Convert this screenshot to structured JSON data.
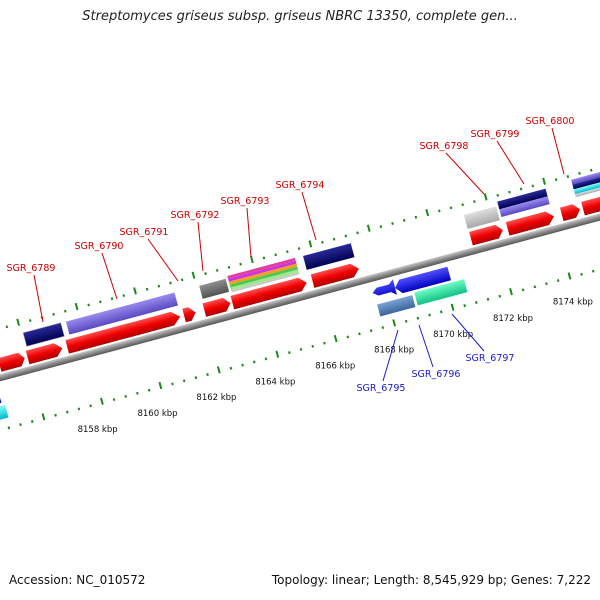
{
  "title": "Streptomyces griseus subsp. griseus NBRC 13350, complete gen...",
  "footer": {
    "accession": "Accession: NC_010572",
    "summary": "Topology: linear; Length: 8,545,929 bp; Genes: 7,222"
  },
  "colors": {
    "backbone": "#888888",
    "gene": "#ff0000",
    "label_plus": "#cc0000",
    "label_minus": "#1a1acc",
    "tick": "#1a8a1a"
  },
  "kbp_labels": [
    "8158 kbp",
    "8160 kbp",
    "8162 kbp",
    "8164 kbp",
    "8166 kbp",
    "8168 kbp",
    "8170 kbp",
    "8172 kbp",
    "8174 kbp"
  ],
  "plus_labels": [
    "SGR_6789",
    "SGR_6790",
    "SGR_6791",
    "SGR_6792",
    "SGR_6793",
    "SGR_6794",
    "SGR_6798",
    "SGR_6799",
    "SGR_6800"
  ],
  "minus_labels": [
    "SGR_6795",
    "SGR_6796",
    "SGR_6797"
  ]
}
